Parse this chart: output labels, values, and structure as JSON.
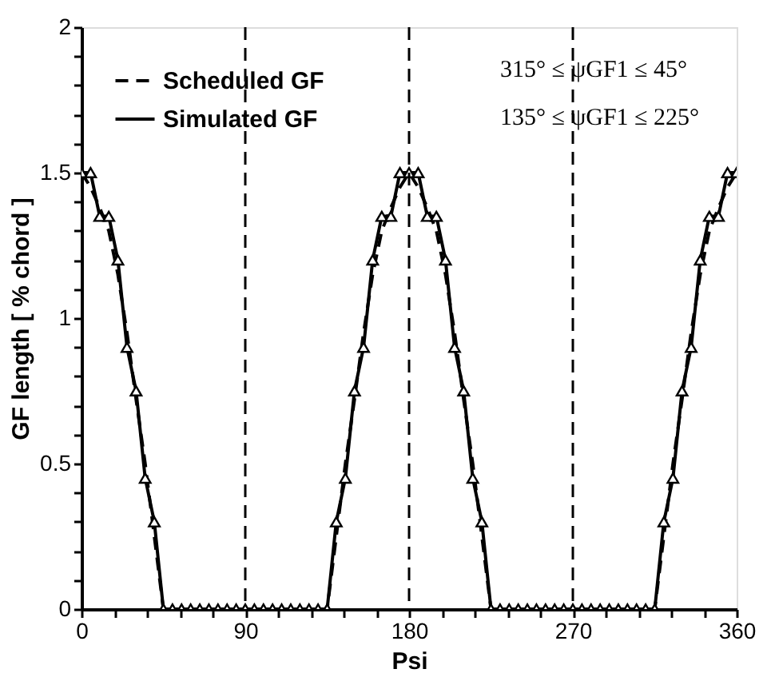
{
  "chart_data": {
    "type": "line",
    "xlabel": "Psi",
    "ylabel": "GF length [ % chord ]",
    "xlim": [
      0,
      360
    ],
    "ylim": [
      0,
      2
    ],
    "xticks": [
      0,
      {
        "value": 18,
        "label": null
      },
      {
        "value": 36,
        "label": null
      },
      {
        "value": 54,
        "label": null
      },
      {
        "value": 72,
        "label": null
      },
      90,
      {
        "value": 108,
        "label": null
      },
      {
        "value": 126,
        "label": null
      },
      {
        "value": 144,
        "label": null
      },
      {
        "value": 162,
        "label": null
      },
      180,
      {
        "value": 198,
        "label": null
      },
      {
        "value": 216,
        "label": null
      },
      {
        "value": 234,
        "label": null
      },
      {
        "value": 252,
        "label": null
      },
      270,
      {
        "value": 288,
        "label": null
      },
      {
        "value": 306,
        "label": null
      },
      {
        "value": 324,
        "label": null
      },
      {
        "value": 342,
        "label": null
      },
      360
    ],
    "yticks": [
      0,
      {
        "value": 0.1,
        "label": null
      },
      {
        "value": 0.2,
        "label": null
      },
      {
        "value": 0.3,
        "label": null
      },
      {
        "value": 0.4,
        "label": null
      },
      0.5,
      {
        "value": 0.6,
        "label": null
      },
      {
        "value": 0.7,
        "label": null
      },
      {
        "value": 0.8,
        "label": null
      },
      {
        "value": 0.9,
        "label": null
      },
      1,
      {
        "value": 1.1,
        "label": null
      },
      {
        "value": 1.2,
        "label": null
      },
      {
        "value": 1.3,
        "label": null
      },
      {
        "value": 1.4,
        "label": null
      },
      1.5,
      {
        "value": 1.6,
        "label": null
      },
      {
        "value": 1.7,
        "label": null
      },
      {
        "value": 1.8,
        "label": null
      },
      {
        "value": 1.9,
        "label": null
      },
      2
    ],
    "grid": false,
    "legend": "top left",
    "series": [
      {
        "name": "Scheduled GF",
        "color": "#000000",
        "line_style": "dashed",
        "marker": "none",
        "x": [
          0,
          5,
          10,
          15,
          20,
          25,
          30,
          35,
          40,
          45,
          135,
          140,
          145,
          150,
          155,
          160,
          165,
          170,
          175,
          180,
          185,
          190,
          195,
          200,
          205,
          210,
          215,
          220,
          225,
          315,
          320,
          325,
          330,
          335,
          340,
          345,
          350,
          355,
          360
        ],
        "values": [
          1.5,
          1.45,
          1.38,
          1.3,
          1.15,
          0.95,
          0.72,
          0.5,
          0.25,
          0,
          0,
          0.25,
          0.5,
          0.72,
          0.95,
          1.15,
          1.3,
          1.38,
          1.45,
          1.5,
          1.45,
          1.38,
          1.3,
          1.15,
          0.95,
          0.72,
          0.5,
          0.25,
          0,
          0,
          0.25,
          0.5,
          0.72,
          0.95,
          1.15,
          1.3,
          1.38,
          1.45,
          1.5
        ]
      },
      {
        "name": "Simulated GF",
        "color": "#000000",
        "line_style": "solid",
        "marker": "triangle",
        "x": [
          0,
          5,
          10,
          15,
          20,
          25,
          30,
          35,
          40,
          45,
          50,
          55,
          60,
          65,
          70,
          75,
          80,
          85,
          90,
          95,
          100,
          105,
          110,
          115,
          120,
          125,
          130,
          135,
          140,
          145,
          150,
          155,
          160,
          165,
          170,
          175,
          180,
          185,
          190,
          195,
          200,
          205,
          210,
          215,
          220,
          225,
          230,
          235,
          240,
          245,
          250,
          255,
          260,
          265,
          270,
          275,
          280,
          285,
          290,
          295,
          300,
          305,
          310,
          315,
          320,
          325,
          330,
          335,
          340,
          345,
          350,
          355,
          360
        ],
        "values": [
          1.5,
          1.5,
          1.35,
          1.35,
          1.2,
          0.9,
          0.75,
          0.45,
          0.3,
          0,
          0,
          0,
          0,
          0,
          0,
          0,
          0,
          0,
          0,
          0,
          0,
          0,
          0,
          0,
          0,
          0,
          0,
          0,
          0.3,
          0.45,
          0.75,
          0.9,
          1.2,
          1.35,
          1.35,
          1.5,
          1.5,
          1.5,
          1.35,
          1.35,
          1.2,
          0.9,
          0.75,
          0.45,
          0.3,
          0,
          0,
          0,
          0,
          0,
          0,
          0,
          0,
          0,
          0,
          0,
          0,
          0,
          0,
          0,
          0,
          0,
          0,
          0,
          0.3,
          0.45,
          0.75,
          0.9,
          1.2,
          1.35,
          1.35,
          1.5,
          1.5
        ]
      }
    ],
    "ref_lines": [
      {
        "axis": "x",
        "value": 90,
        "label": null,
        "color": "#000000",
        "line_style": "dashed"
      },
      {
        "axis": "x",
        "value": 180,
        "label": null,
        "color": "#000000",
        "line_style": "dashed"
      },
      {
        "axis": "x",
        "value": 270,
        "label": null,
        "color": "#000000",
        "line_style": "dashed"
      }
    ],
    "annotations": [
      "315° ≤ ψGF1 ≤ 45°",
      "135° ≤ ψGF1 ≤ 225°"
    ]
  }
}
